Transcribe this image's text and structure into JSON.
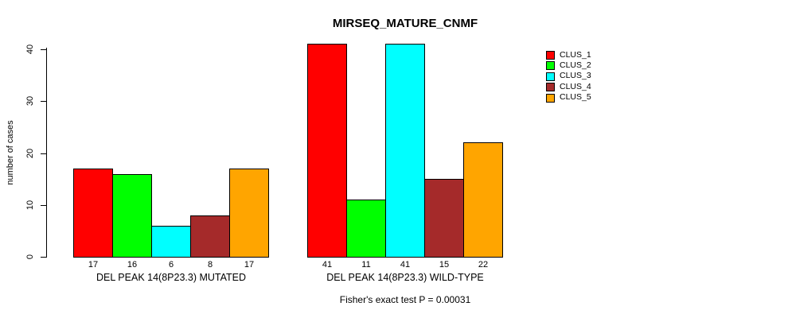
{
  "title": "MIRSEQ_MATURE_CNMF",
  "footnote": "Fisher's exact test P = 0.00031",
  "chart_data": {
    "type": "bar",
    "title": "MIRSEQ_MATURE_CNMF",
    "xlabel": "",
    "ylabel": "number of cases",
    "ylim": [
      0,
      40
    ],
    "yticks": [
      0,
      10,
      20,
      30,
      40
    ],
    "grid": false,
    "legend_position": "right",
    "categories": [
      "DEL PEAK 14(8P23.3) MUTATED",
      "DEL PEAK 14(8P23.3) WILD-TYPE"
    ],
    "series": [
      {
        "name": "CLUS_1",
        "color": "#FF0000",
        "values": [
          17,
          41
        ]
      },
      {
        "name": "CLUS_2",
        "color": "#00FF00",
        "values": [
          16,
          11
        ]
      },
      {
        "name": "CLUS_3",
        "color": "#00FFFF",
        "values": [
          6,
          41
        ]
      },
      {
        "name": "CLUS_4",
        "color": "#A52A2A",
        "values": [
          8,
          15
        ]
      },
      {
        "name": "CLUS_5",
        "color": "#FFA500",
        "values": [
          17,
          22
        ]
      }
    ],
    "bar_value_labels": [
      [
        "17",
        "16",
        "6",
        "8",
        "17"
      ],
      [
        "41",
        "11",
        "41",
        "15",
        "22"
      ]
    ],
    "annotation": "Fisher's exact test P = 0.00031"
  }
}
